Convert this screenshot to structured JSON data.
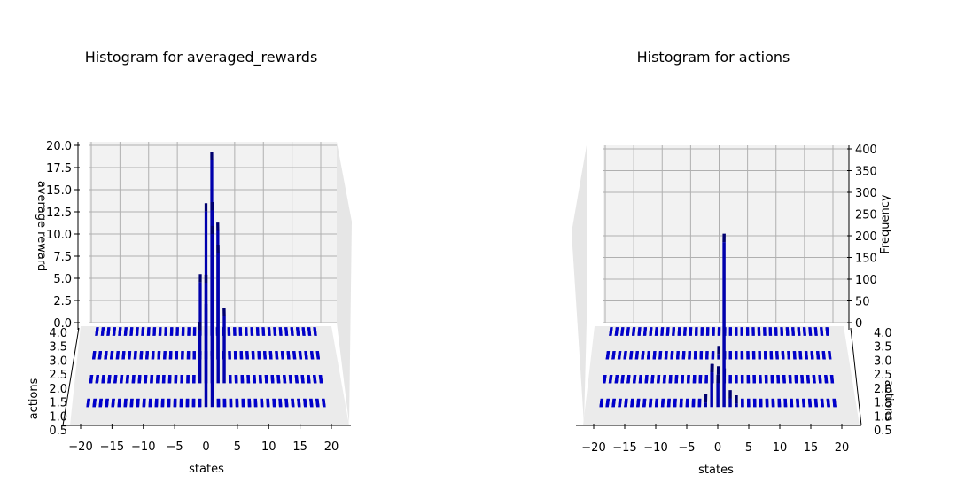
{
  "colors": {
    "bar": "#0000cc",
    "pane": "#f2f2f2",
    "grid": "#b0b0b0",
    "axis": "#000000"
  },
  "chart_data": [
    {
      "type": "bar3d",
      "title": "Histogram for averaged_rewards",
      "xlabel": "states",
      "ylabel": "actions",
      "zlabel": "average reward",
      "xlim": [
        -20,
        20
      ],
      "ylim": [
        0.5,
        4.0
      ],
      "zlim": [
        0,
        20
      ],
      "x_ticks": [
        "−20",
        "−15",
        "−10",
        "−5",
        "0",
        "5",
        "10",
        "15",
        "20"
      ],
      "y_ticks": [
        "0.5",
        "1.0",
        "1.5",
        "2.0",
        "2.5",
        "3.0",
        "3.5",
        "4.0"
      ],
      "z_ticks": [
        "0.0",
        "2.5",
        "5.0",
        "7.5",
        "10.0",
        "12.5",
        "15.0",
        "17.5",
        "20.0"
      ],
      "states": [
        -19,
        -18,
        -17,
        -16,
        -15,
        -14,
        -13,
        -12,
        -11,
        -10,
        -9,
        -8,
        -7,
        -6,
        -5,
        -4,
        -3,
        -2,
        -1,
        0,
        1,
        2,
        3,
        4,
        5,
        6,
        7,
        8,
        9,
        10,
        11,
        12,
        13,
        14,
        15,
        16,
        17,
        18,
        19
      ],
      "actions": [
        1,
        2,
        3,
        4
      ],
      "nonzero_bars": [
        {
          "state": -1,
          "action": 2,
          "value": 6.0
        },
        {
          "state": -1,
          "action": 4,
          "value": 6.0
        },
        {
          "state": 0,
          "action": 1,
          "value": 14.0
        },
        {
          "state": 0,
          "action": 2,
          "value": 8.0
        },
        {
          "state": 0,
          "action": 4,
          "value": 14.0
        },
        {
          "state": 1,
          "action": 1,
          "value": 19.5
        },
        {
          "state": 1,
          "action": 2,
          "value": 19.5
        },
        {
          "state": 1,
          "action": 4,
          "value": 19.8
        },
        {
          "state": 2,
          "action": 2,
          "value": 14.7
        },
        {
          "state": 2,
          "action": 3,
          "value": 14.5
        },
        {
          "state": 3,
          "action": 2,
          "value": 7.6
        }
      ]
    },
    {
      "type": "bar3d",
      "title": "Histogram for actions",
      "xlabel": "states",
      "ylabel": "actions",
      "zlabel": "Frequency",
      "xlim": [
        -20,
        20
      ],
      "ylim": [
        0.5,
        4.0
      ],
      "zlim": [
        0,
        400
      ],
      "x_ticks": [
        "−20",
        "−15",
        "−10",
        "−5",
        "0",
        "5",
        "10",
        "15",
        "20"
      ],
      "y_ticks": [
        "0.5",
        "1.0",
        "1.5",
        "2.0",
        "2.5",
        "3.0",
        "3.5",
        "4.0"
      ],
      "z_ticks": [
        "0",
        "50",
        "100",
        "150",
        "200",
        "250",
        "300",
        "350",
        "400"
      ],
      "states": [
        -19,
        -18,
        -17,
        -16,
        -15,
        -14,
        -13,
        -12,
        -11,
        -10,
        -9,
        -8,
        -7,
        -6,
        -5,
        -4,
        -3,
        -2,
        -1,
        0,
        1,
        2,
        3,
        4,
        5,
        6,
        7,
        8,
        9,
        10,
        11,
        12,
        13,
        14,
        15,
        16,
        17,
        18,
        19
      ],
      "actions": [
        1,
        2,
        3,
        4
      ],
      "nonzero_bars": [
        {
          "state": -2,
          "action": 1,
          "value": 10
        },
        {
          "state": -1,
          "action": 1,
          "value": 80
        },
        {
          "state": -1,
          "action": 2,
          "value": 25
        },
        {
          "state": 0,
          "action": 1,
          "value": 55
        },
        {
          "state": 0,
          "action": 2,
          "value": 20
        },
        {
          "state": 0,
          "action": 3,
          "value": 12
        },
        {
          "state": 1,
          "action": 1,
          "value": 380
        },
        {
          "state": 1,
          "action": 2,
          "value": 15
        },
        {
          "state": 2,
          "action": 1,
          "value": 20
        },
        {
          "state": 3,
          "action": 1,
          "value": 8
        }
      ]
    }
  ]
}
